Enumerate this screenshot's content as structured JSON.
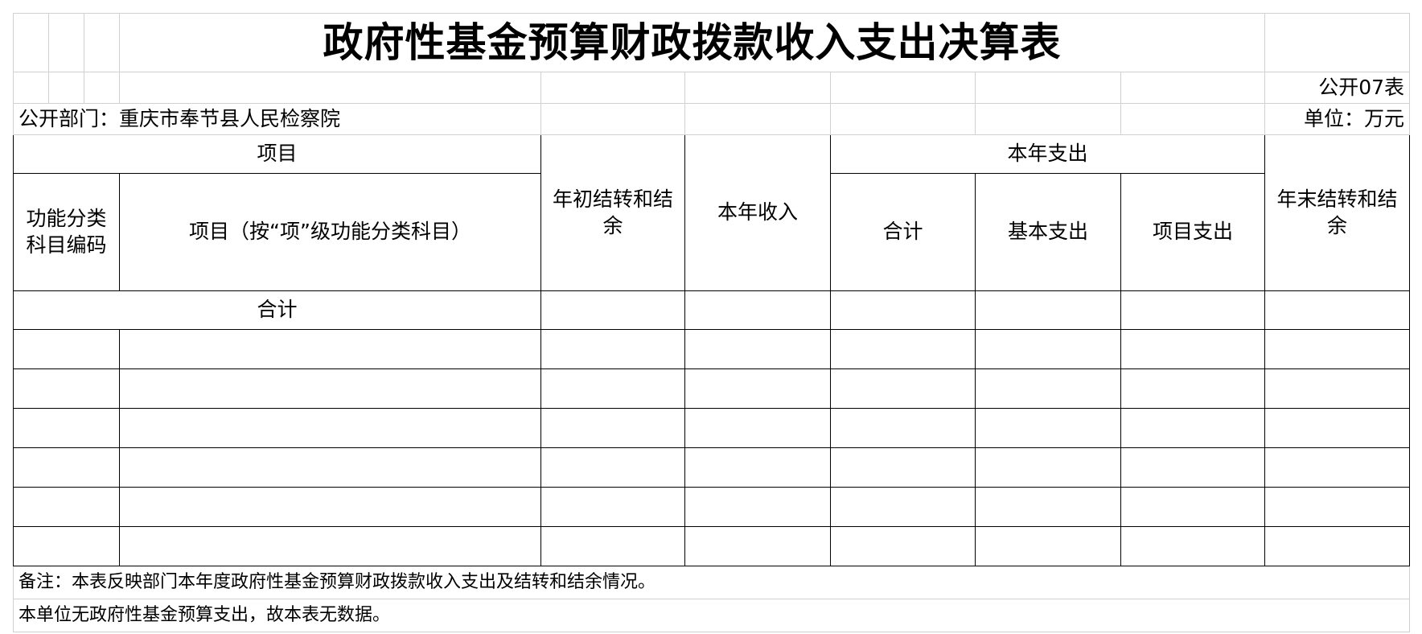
{
  "title": "政府性基金预算财政拨款收入支出决算表",
  "table_no": "公开07表",
  "department": "公开部门：重庆市奉节县人民检察院",
  "unit": "单位：万元",
  "header": {
    "item": "项目",
    "code": "功能分类科目编码",
    "item_name": "项目（按“项”级功能分类科目）",
    "opening_balance": "年初结转和结余",
    "income": "本年收入",
    "expenditure": "本年支出",
    "exp_total": "合计",
    "exp_basic": "基本支出",
    "exp_project": "项目支出",
    "closing_balance": "年末结转和结余"
  },
  "total_label": "合计",
  "rows": [
    [],
    [],
    [],
    [],
    [],
    []
  ],
  "note": "备注：本表反映部门本年度政府性基金预算财政拨款收入支出及结转和结余情况。",
  "no_data_note": "本单位无政府性基金预算支出，故本表无数据。"
}
